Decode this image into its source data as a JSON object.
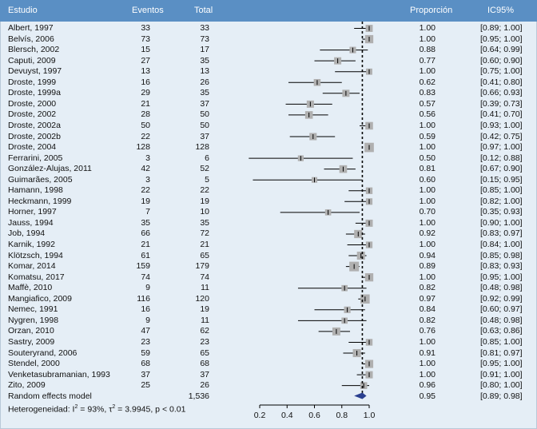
{
  "headers": {
    "study": "Estudio",
    "events": "Eventos",
    "total": "Total",
    "proportion": "Proporción",
    "ci": "IC95%"
  },
  "chart_data": {
    "type": "forest",
    "title": "",
    "xlabel": "",
    "xlim": [
      0.1,
      1.05
    ],
    "reference_line": 0.95,
    "axis_ticks": [
      0.2,
      0.4,
      0.6,
      0.8,
      1.0
    ],
    "axis_tick_labels": [
      "0.2",
      "0.4",
      "0.6",
      "0.8",
      "1.0"
    ],
    "studies": [
      {
        "study": "Albert, 1997",
        "events": "33",
        "total": "33",
        "prop": 1.0,
        "lo": 0.89,
        "hi": 1.0,
        "prop_text": "1.00",
        "ci_text": "[0.89; 1.00]"
      },
      {
        "study": "Belvís, 2006",
        "events": "73",
        "total": "73",
        "prop": 1.0,
        "lo": 0.95,
        "hi": 1.0,
        "prop_text": "1.00",
        "ci_text": "[0.95; 1.00]"
      },
      {
        "study": "Blersch, 2002",
        "events": "15",
        "total": "17",
        "prop": 0.88,
        "lo": 0.64,
        "hi": 0.99,
        "prop_text": "0.88",
        "ci_text": "[0.64; 0.99]"
      },
      {
        "study": "Caputi, 2009",
        "events": "27",
        "total": "35",
        "prop": 0.77,
        "lo": 0.6,
        "hi": 0.9,
        "prop_text": "0.77",
        "ci_text": "[0.60; 0.90]"
      },
      {
        "study": "Devuyst, 1997",
        "events": "13",
        "total": "13",
        "prop": 1.0,
        "lo": 0.75,
        "hi": 1.0,
        "prop_text": "1.00",
        "ci_text": "[0.75; 1.00]"
      },
      {
        "study": "Droste, 1999",
        "events": "16",
        "total": "26",
        "prop": 0.62,
        "lo": 0.41,
        "hi": 0.8,
        "prop_text": "0.62",
        "ci_text": "[0.41; 0.80]"
      },
      {
        "study": "Droste, 1999a",
        "events": "29",
        "total": "35",
        "prop": 0.83,
        "lo": 0.66,
        "hi": 0.93,
        "prop_text": "0.83",
        "ci_text": "[0.66; 0.93]"
      },
      {
        "study": "Droste, 2000",
        "events": "21",
        "total": "37",
        "prop": 0.57,
        "lo": 0.39,
        "hi": 0.73,
        "prop_text": "0.57",
        "ci_text": "[0.39; 0.73]"
      },
      {
        "study": "Droste, 2002",
        "events": "28",
        "total": "50",
        "prop": 0.56,
        "lo": 0.41,
        "hi": 0.7,
        "prop_text": "0.56",
        "ci_text": "[0.41; 0.70]"
      },
      {
        "study": "Droste, 2002a",
        "events": "50",
        "total": "50",
        "prop": 1.0,
        "lo": 0.93,
        "hi": 1.0,
        "prop_text": "1.00",
        "ci_text": "[0.93; 1.00]"
      },
      {
        "study": "Droste, 2002b",
        "events": "22",
        "total": "37",
        "prop": 0.59,
        "lo": 0.42,
        "hi": 0.75,
        "prop_text": "0.59",
        "ci_text": "[0.42; 0.75]"
      },
      {
        "study": "Droste, 2004",
        "events": "128",
        "total": "128",
        "prop": 1.0,
        "lo": 0.97,
        "hi": 1.0,
        "prop_text": "1.00",
        "ci_text": "[0.97; 1.00]"
      },
      {
        "study": "Ferrarini, 2005",
        "events": "3",
        "total": "6",
        "prop": 0.5,
        "lo": 0.12,
        "hi": 0.88,
        "prop_text": "0.50",
        "ci_text": "[0.12; 0.88]"
      },
      {
        "study": "González-Alujas, 2011",
        "events": "42",
        "total": "52",
        "prop": 0.81,
        "lo": 0.67,
        "hi": 0.9,
        "prop_text": "0.81",
        "ci_text": "[0.67; 0.90]"
      },
      {
        "study": "Guimarães, 2005",
        "events": "3",
        "total": "5",
        "prop": 0.6,
        "lo": 0.15,
        "hi": 0.95,
        "prop_text": "0.60",
        "ci_text": "[0.15; 0.95]"
      },
      {
        "study": "Hamann, 1998",
        "events": "22",
        "total": "22",
        "prop": 1.0,
        "lo": 0.85,
        "hi": 1.0,
        "prop_text": "1.00",
        "ci_text": "[0.85; 1.00]"
      },
      {
        "study": "Heckmann, 1999",
        "events": "19",
        "total": "19",
        "prop": 1.0,
        "lo": 0.82,
        "hi": 1.0,
        "prop_text": "1.00",
        "ci_text": "[0.82; 1.00]"
      },
      {
        "study": "Horner, 1997",
        "events": "7",
        "total": "10",
        "prop": 0.7,
        "lo": 0.35,
        "hi": 0.93,
        "prop_text": "0.70",
        "ci_text": "[0.35; 0.93]"
      },
      {
        "study": "Jauss, 1994",
        "events": "35",
        "total": "35",
        "prop": 1.0,
        "lo": 0.9,
        "hi": 1.0,
        "prop_text": "1.00",
        "ci_text": "[0.90; 1.00]"
      },
      {
        "study": "Job, 1994",
        "events": "66",
        "total": "72",
        "prop": 0.92,
        "lo": 0.83,
        "hi": 0.97,
        "prop_text": "0.92",
        "ci_text": "[0.83; 0.97]"
      },
      {
        "study": "Karnik, 1992",
        "events": "21",
        "total": "21",
        "prop": 1.0,
        "lo": 0.84,
        "hi": 1.0,
        "prop_text": "1.00",
        "ci_text": "[0.84; 1.00]"
      },
      {
        "study": "Klötzsch, 1994",
        "events": "61",
        "total": "65",
        "prop": 0.94,
        "lo": 0.85,
        "hi": 0.98,
        "prop_text": "0.94",
        "ci_text": "[0.85; 0.98]"
      },
      {
        "study": "Komar, 2014",
        "events": "159",
        "total": "179",
        "prop": 0.89,
        "lo": 0.83,
        "hi": 0.93,
        "prop_text": "0.89",
        "ci_text": "[0.83; 0.93]"
      },
      {
        "study": "Komatsu, 2017",
        "events": "74",
        "total": "74",
        "prop": 1.0,
        "lo": 0.95,
        "hi": 1.0,
        "prop_text": "1.00",
        "ci_text": "[0.95; 1.00]"
      },
      {
        "study": "Maffè, 2010",
        "events": "9",
        "total": "11",
        "prop": 0.82,
        "lo": 0.48,
        "hi": 0.98,
        "prop_text": "0.82",
        "ci_text": "[0.48; 0.98]"
      },
      {
        "study": "Mangiafico, 2009",
        "events": "116",
        "total": "120",
        "prop": 0.97,
        "lo": 0.92,
        "hi": 0.99,
        "prop_text": "0.97",
        "ci_text": "[0.92; 0.99]"
      },
      {
        "study": "Nemec, 1991",
        "events": "16",
        "total": "19",
        "prop": 0.84,
        "lo": 0.6,
        "hi": 0.97,
        "prop_text": "0.84",
        "ci_text": "[0.60; 0.97]"
      },
      {
        "study": "Nygren, 1998",
        "events": "9",
        "total": "11",
        "prop": 0.82,
        "lo": 0.48,
        "hi": 0.98,
        "prop_text": "0.82",
        "ci_text": "[0.48; 0.98]"
      },
      {
        "study": "Orzan, 2010",
        "events": "47",
        "total": "62",
        "prop": 0.76,
        "lo": 0.63,
        "hi": 0.86,
        "prop_text": "0.76",
        "ci_text": "[0.63; 0.86]"
      },
      {
        "study": "Sastry, 2009",
        "events": "23",
        "total": "23",
        "prop": 1.0,
        "lo": 0.85,
        "hi": 1.0,
        "prop_text": "1.00",
        "ci_text": "[0.85; 1.00]"
      },
      {
        "study": "Souteryrand, 2006",
        "events": "59",
        "total": "65",
        "prop": 0.91,
        "lo": 0.81,
        "hi": 0.97,
        "prop_text": "0.91",
        "ci_text": "[0.81; 0.97]"
      },
      {
        "study": "Stendel, 2000",
        "events": "68",
        "total": "68",
        "prop": 1.0,
        "lo": 0.95,
        "hi": 1.0,
        "prop_text": "1.00",
        "ci_text": "[0.95; 1.00]"
      },
      {
        "study": "Venketasubramanian, 1993",
        "events": "37",
        "total": "37",
        "prop": 1.0,
        "lo": 0.91,
        "hi": 1.0,
        "prop_text": "1.00",
        "ci_text": "[0.91; 1.00]"
      },
      {
        "study": "Zito, 2009",
        "events": "25",
        "total": "26",
        "prop": 0.96,
        "lo": 0.8,
        "hi": 1.0,
        "prop_text": "0.96",
        "ci_text": "[0.80; 1.00]"
      }
    ],
    "summary": {
      "label": "Random effects model",
      "total": "1,536",
      "prop": 0.95,
      "lo": 0.89,
      "hi": 0.98,
      "prop_text": "0.95",
      "ci_text": "[0.89; 0.98]"
    },
    "heterogeneity": {
      "prefix": "Heterogeneidad: I",
      "sup1": "2",
      "mid": " = 93%, τ",
      "sup2": "2",
      "suffix": " = 3.9945, p < 0.01"
    }
  },
  "colors": {
    "header_bg": "#5a8fc4",
    "panel_bg": "#e5eef6",
    "square": "#b0b0b0",
    "diamond": "#2a3f8f",
    "line": "#000000"
  }
}
